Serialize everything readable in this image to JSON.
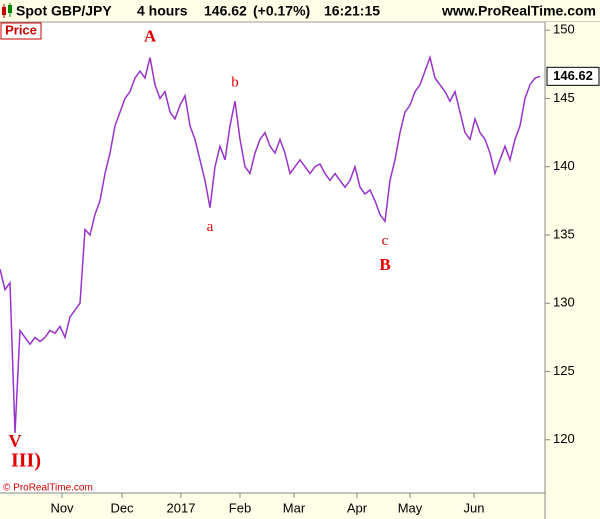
{
  "chart_data": {
    "type": "line",
    "title": "Spot GBP/JPY",
    "period": "4 hours",
    "price": "146.62",
    "change": "(+0.17%)",
    "time": "16:21:15",
    "website": "www.ProRealTime.com",
    "panel_label": "Price",
    "copyright": "© ProRealTime.com",
    "annotations": [
      "A",
      "a",
      "b",
      "c",
      "B",
      "V",
      "III)"
    ],
    "ylim": [
      116.1,
      150.6
    ],
    "yticks": [
      120,
      125,
      130,
      135,
      140,
      145,
      150
    ],
    "xlim": [
      0,
      109
    ],
    "xticks": [
      {
        "value": 12.4,
        "label": "Nov"
      },
      {
        "value": 24.4,
        "label": "Dec"
      },
      {
        "value": 36.2,
        "label": "2017"
      },
      {
        "value": 48,
        "label": "Feb"
      },
      {
        "value": 58.8,
        "label": "Mar"
      },
      {
        "value": 71.4,
        "label": "Apr"
      },
      {
        "value": 82,
        "label": "May"
      },
      {
        "value": 94.8,
        "label": "Jun"
      }
    ],
    "series": [
      {
        "name": "GBP/JPY",
        "color": "#9933cc",
        "x": [
          0,
          1,
          2,
          3,
          4,
          5,
          6,
          7,
          8,
          9,
          10,
          11,
          12,
          13,
          14,
          15,
          16,
          17,
          18,
          19,
          20,
          21,
          22,
          23,
          24,
          25,
          26,
          27,
          28,
          29,
          30,
          31,
          32,
          33,
          34,
          35,
          36,
          37,
          38,
          39,
          40,
          41,
          42,
          43,
          44,
          45,
          46,
          47,
          48,
          49,
          50,
          51,
          52,
          53,
          54,
          55,
          56,
          57,
          58,
          59,
          60,
          61,
          62,
          63,
          64,
          65,
          66,
          67,
          68,
          69,
          70,
          71,
          72,
          73,
          74,
          75,
          76,
          77,
          78,
          79,
          80,
          81,
          82,
          83,
          84,
          85,
          86,
          87,
          88,
          89,
          90,
          91,
          92,
          93,
          94,
          95,
          96,
          97,
          98,
          99,
          100,
          101,
          102,
          103,
          104,
          105,
          106,
          107,
          108
        ],
        "values": [
          132.5,
          131,
          131.5,
          120.5,
          128,
          127.5,
          127,
          127.5,
          127.2,
          127.5,
          128,
          127.8,
          128.3,
          127.5,
          129,
          129.5,
          130,
          135.4,
          135,
          136.5,
          137.5,
          139.5,
          141,
          143,
          144,
          145,
          145.5,
          146.5,
          147,
          146.5,
          148,
          146,
          145,
          145.5,
          144,
          143.5,
          144.5,
          145.2,
          143,
          142,
          140.5,
          139,
          137,
          140,
          141.5,
          140.5,
          143,
          144.8,
          142,
          140,
          139.5,
          141,
          142,
          142.5,
          141.5,
          141,
          142,
          141,
          139.5,
          140,
          140.5,
          140,
          139.5,
          140,
          140.2,
          139.5,
          139,
          139.5,
          139,
          138.5,
          139,
          140,
          138.5,
          138,
          138.3,
          137.5,
          136.5,
          136,
          139,
          140.5,
          142.5,
          144,
          144.5,
          145.5,
          146,
          147,
          148,
          146.5,
          146,
          145.5,
          144.8,
          145.5,
          144,
          142.5,
          142,
          143.5,
          142.5,
          142,
          141,
          139.5,
          140.5,
          141.5,
          140.5,
          142,
          143,
          145,
          146,
          146.5,
          146.62
        ]
      }
    ]
  }
}
